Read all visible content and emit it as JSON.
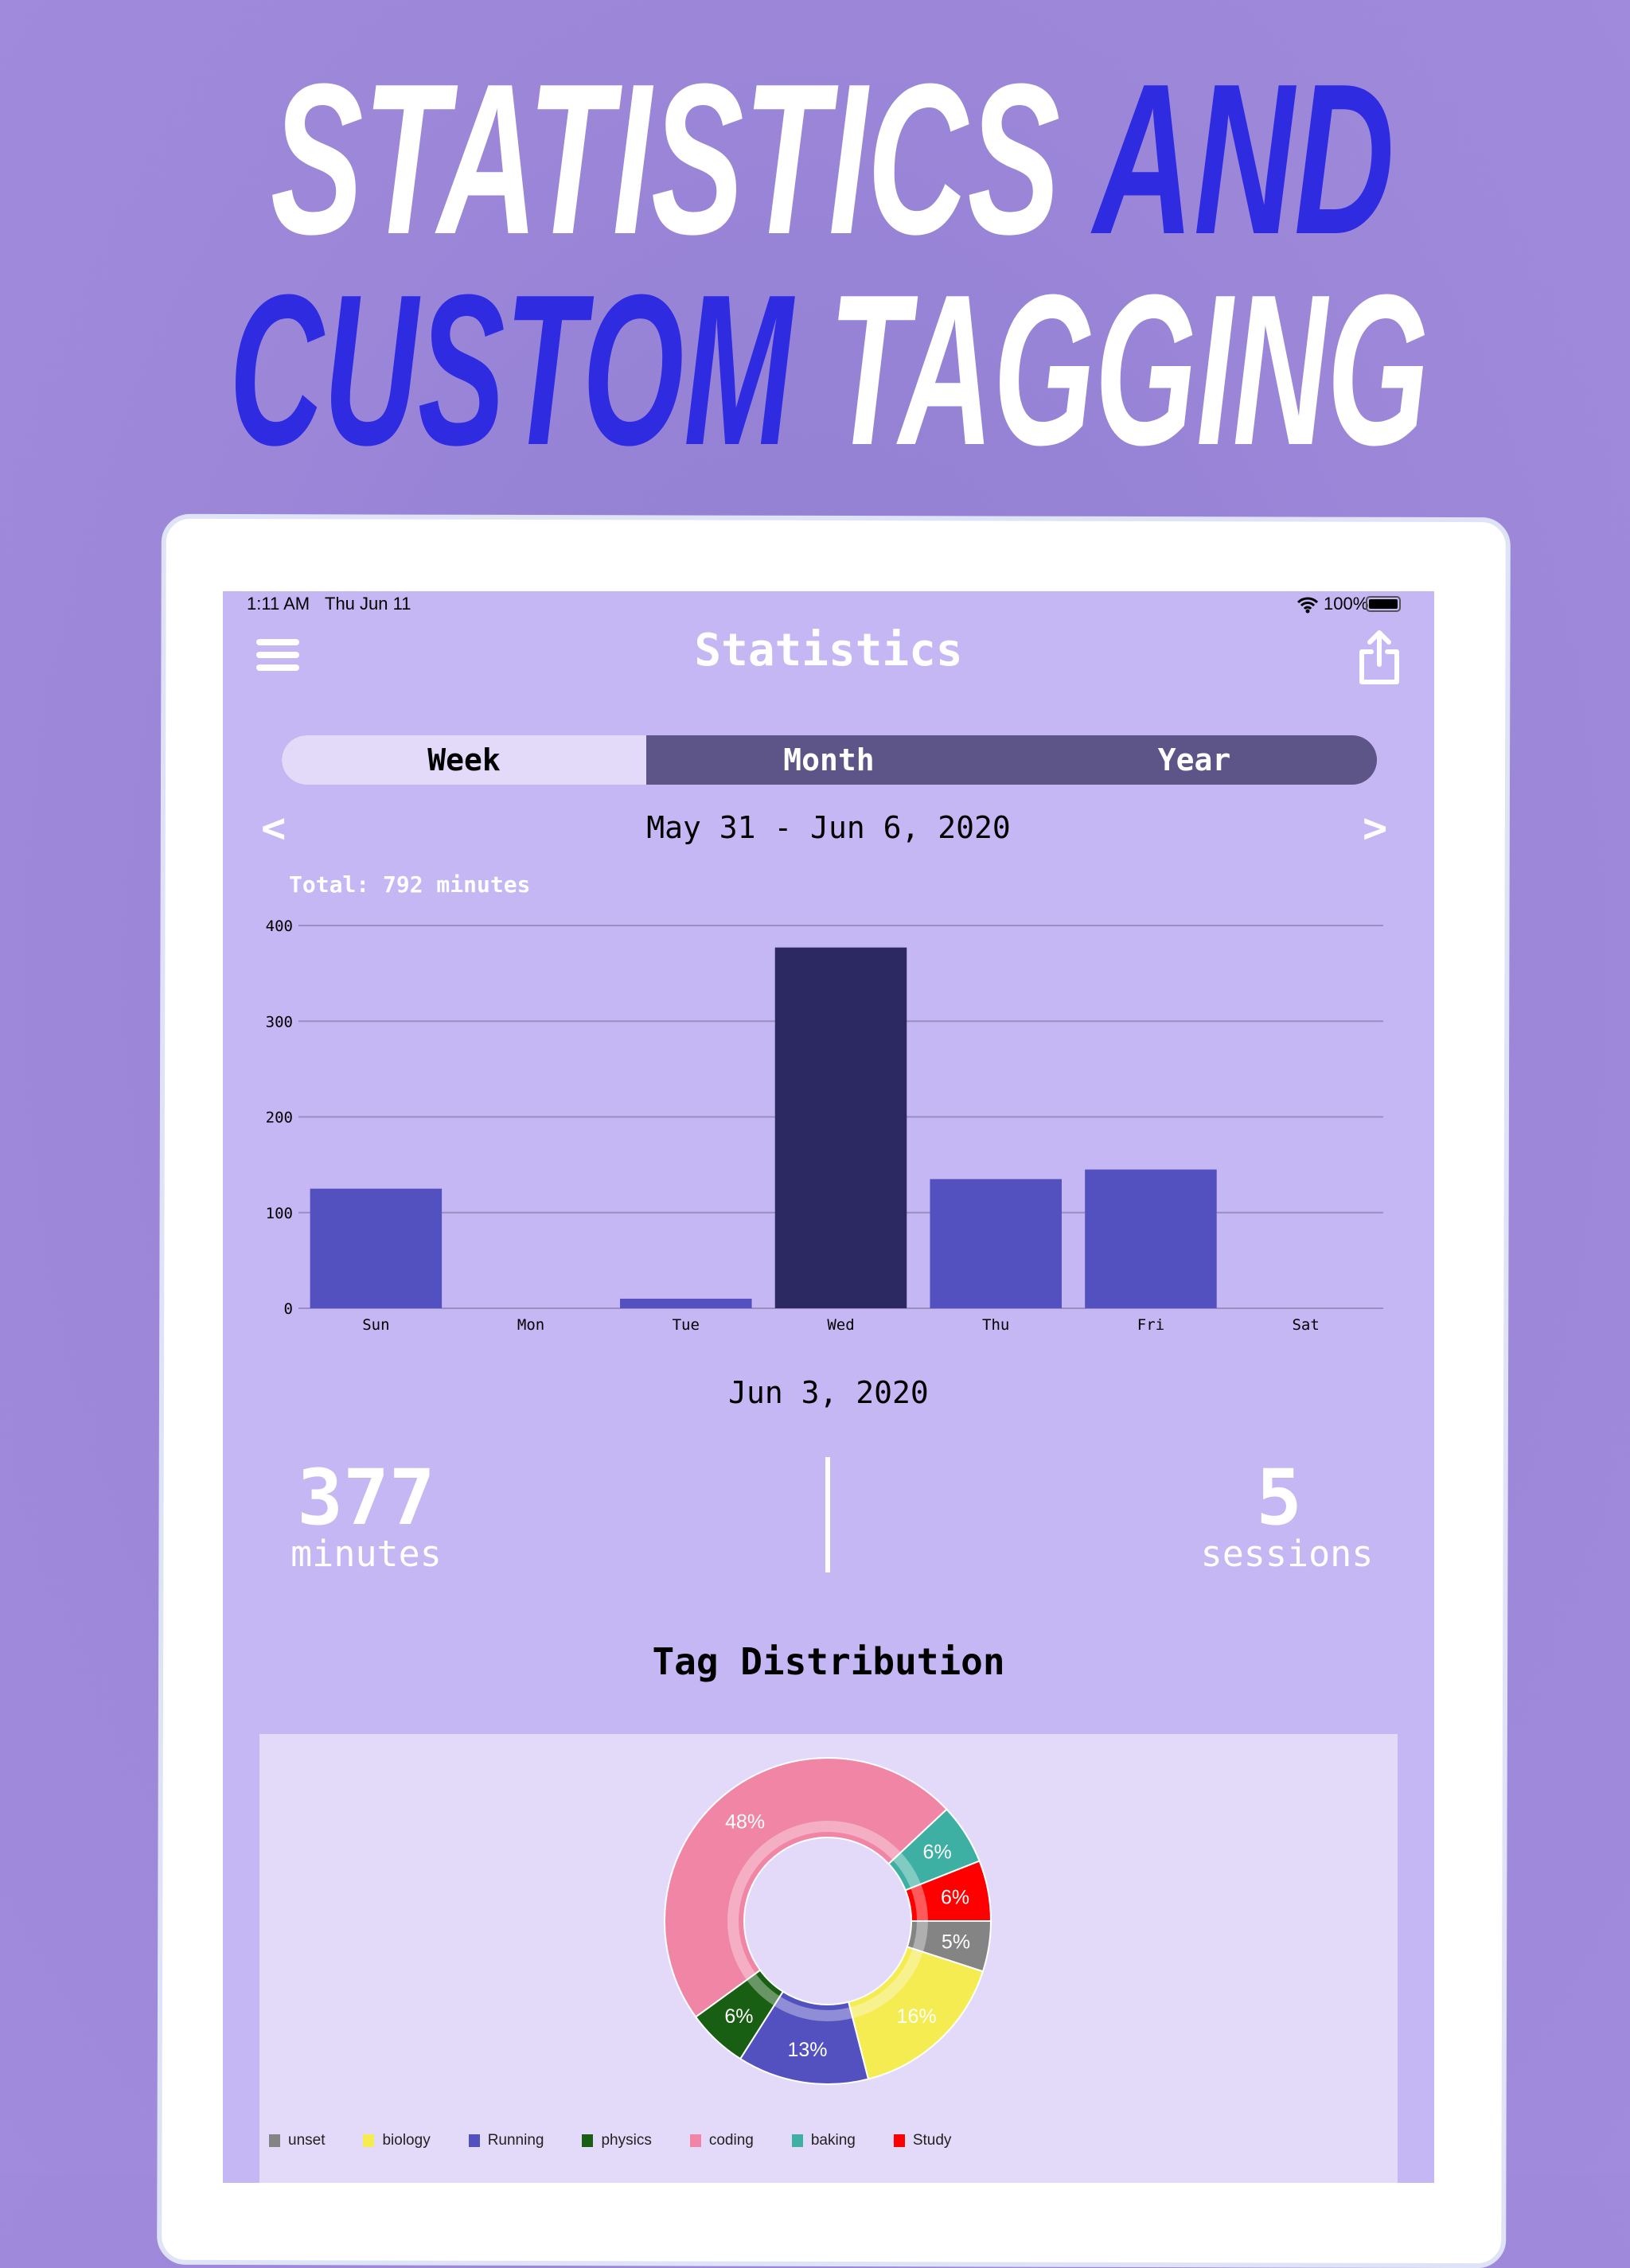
{
  "headline": {
    "line1": [
      {
        "text": "STATISTICS ",
        "color": "#ffffff"
      },
      {
        "text": "AND",
        "color": "#2e2be0"
      }
    ],
    "line2": [
      {
        "text": "CUSTOM ",
        "color": "#2e2be0"
      },
      {
        "text": "TAGGING",
        "color": "#ffffff"
      }
    ]
  },
  "status_bar": {
    "time": "1:11 AM",
    "date": "Thu Jun 11",
    "battery": "100%"
  },
  "nav": {
    "title": "Statistics",
    "menu_icon": "hamburger-icon",
    "share_icon": "share-icon"
  },
  "segments": [
    {
      "label": "Week",
      "active": true
    },
    {
      "label": "Month",
      "active": false
    },
    {
      "label": "Year",
      "active": false
    }
  ],
  "range": {
    "label": "May 31  - Jun 6, 2020",
    "prev": "<",
    "next": ">"
  },
  "total": "Total: 792 minutes",
  "chart_data": [
    {
      "type": "bar",
      "categories": [
        "Sun",
        "Mon",
        "Tue",
        "Wed",
        "Thu",
        "Fri",
        "Sat"
      ],
      "values": [
        125,
        0,
        10,
        377,
        135,
        145,
        0
      ],
      "yticks": [
        0,
        100,
        200,
        300,
        400
      ],
      "ylim": [
        0,
        400
      ],
      "grid": true,
      "selected": "Wed",
      "colors": {
        "bar": "#5351bf",
        "selected": "#2b2862"
      }
    },
    {
      "type": "pie",
      "donut": true,
      "title": "Tag Distribution",
      "categories": [
        "unset",
        "biology",
        "Running",
        "physics",
        "coding",
        "baking",
        "Study"
      ],
      "values": [
        5,
        16,
        13,
        6,
        48,
        6,
        6
      ],
      "labels": [
        "5%",
        "16%",
        "13%",
        "6%",
        "48%",
        "6%",
        "6%"
      ],
      "colors": [
        "#848484",
        "#f5ec52",
        "#5351bf",
        "#185e13",
        "#f085a6",
        "#3eafa3",
        "#ff0000"
      ],
      "legend": "bottom"
    }
  ],
  "selected_day": {
    "date": "Jun 3, 2020",
    "minutes": "377",
    "minutes_label": "minutes",
    "sessions": "5",
    "sessions_label": "sessions"
  },
  "tag_title": "Tag Distribution"
}
